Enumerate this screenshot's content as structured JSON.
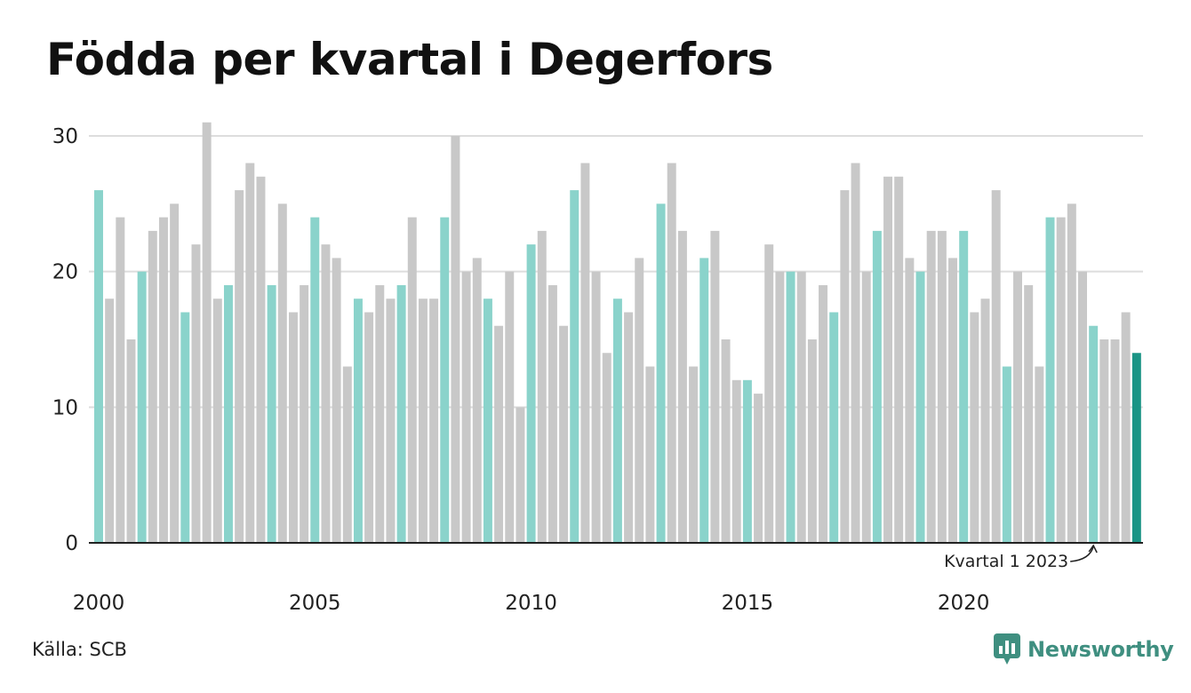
{
  "title": "Födda per kvartal i Degerfors",
  "source": "Källa: SCB",
  "brand": "Newsworthy",
  "colors": {
    "q1": "#8ad3cb",
    "other": "#c8c8c8",
    "highlight": "#1a9485",
    "grid": "#dddddd",
    "axis": "#222222"
  },
  "chart_data": {
    "type": "bar",
    "start_year": 2000,
    "values": [
      26,
      18,
      24,
      15,
      20,
      23,
      24,
      25,
      17,
      22,
      31,
      18,
      19,
      26,
      28,
      27,
      19,
      25,
      17,
      19,
      24,
      22,
      21,
      13,
      18,
      17,
      19,
      18,
      19,
      24,
      18,
      18,
      24,
      30,
      20,
      21,
      18,
      16,
      20,
      10,
      22,
      23,
      19,
      16,
      26,
      28,
      20,
      14,
      18,
      17,
      21,
      13,
      25,
      28,
      23,
      13,
      21,
      23,
      15,
      12,
      12,
      11,
      22,
      20,
      20,
      20,
      15,
      19,
      17,
      26,
      28,
      20,
      23,
      27,
      27,
      21,
      20,
      23,
      23,
      21,
      23,
      17,
      18,
      26,
      13,
      20,
      19,
      13,
      24,
      24,
      25,
      20,
      16,
      15,
      15,
      17,
      14
    ],
    "ylim": [
      0,
      31
    ],
    "yticks": [
      0,
      10,
      20,
      30
    ],
    "xticks": [
      2000,
      2005,
      2010,
      2015,
      2020
    ],
    "grid": true,
    "annotation": {
      "text": "Kvartal 1 2023",
      "target_index": 92
    },
    "highlight_index": 96
  }
}
